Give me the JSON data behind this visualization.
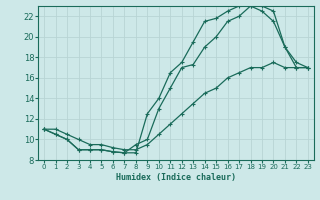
{
  "xlabel": "Humidex (Indice chaleur)",
  "bg_color": "#cde8e8",
  "grid_color": "#b8d4d4",
  "line_color": "#1a6b5a",
  "xlim": [
    -0.5,
    23.5
  ],
  "ylim": [
    8,
    23
  ],
  "xticks": [
    0,
    1,
    2,
    3,
    4,
    5,
    6,
    7,
    8,
    9,
    10,
    11,
    12,
    13,
    14,
    15,
    16,
    17,
    18,
    19,
    20,
    21,
    22,
    23
  ],
  "yticks": [
    8,
    10,
    12,
    14,
    16,
    18,
    20,
    22
  ],
  "line1_x": [
    0,
    1,
    2,
    3,
    4,
    5,
    6,
    7,
    8,
    9,
    10,
    11,
    12,
    13,
    14,
    15,
    16,
    17,
    18,
    19,
    20,
    21,
    22,
    23
  ],
  "line1_y": [
    11,
    10.5,
    10,
    9.0,
    9.0,
    9.0,
    8.8,
    8.7,
    9.5,
    10.0,
    13.0,
    15.0,
    17.0,
    17.3,
    19.0,
    20.0,
    21.5,
    22.0,
    23.0,
    23.0,
    22.5,
    19.0,
    17.5,
    17.0
  ],
  "line2_x": [
    0,
    1,
    2,
    3,
    4,
    5,
    6,
    7,
    8,
    9,
    10,
    11,
    12,
    13,
    14,
    15,
    16,
    17,
    18,
    19,
    20,
    21,
    22,
    23
  ],
  "line2_y": [
    11,
    10.5,
    10,
    9.0,
    9.0,
    9.0,
    8.8,
    8.7,
    8.7,
    12.5,
    14.0,
    16.5,
    17.5,
    19.5,
    21.5,
    21.8,
    22.5,
    23.0,
    23.0,
    22.5,
    21.5,
    19.0,
    17.0,
    17.0
  ],
  "line3_x": [
    0,
    1,
    2,
    3,
    4,
    5,
    6,
    7,
    8,
    9,
    10,
    11,
    12,
    13,
    14,
    15,
    16,
    17,
    18,
    19,
    20,
    21,
    22,
    23
  ],
  "line3_y": [
    11,
    11.0,
    10.5,
    10.0,
    9.5,
    9.5,
    9.2,
    9.0,
    9.0,
    9.5,
    10.5,
    11.5,
    12.5,
    13.5,
    14.5,
    15.0,
    16.0,
    16.5,
    17.0,
    17.0,
    17.5,
    17.0,
    17.0,
    17.0
  ]
}
